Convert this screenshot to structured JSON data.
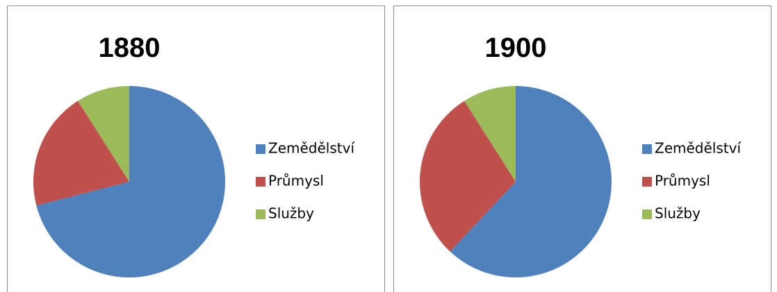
{
  "chart_data": [
    {
      "type": "pie",
      "title": "1880",
      "categories": [
        "Zemědělství",
        "Průmysl",
        "Služby"
      ],
      "values": [
        71,
        20,
        9
      ],
      "colors": [
        "#4f81bd",
        "#c0504d",
        "#9bbb59"
      ],
      "legend": "right"
    },
    {
      "type": "pie",
      "title": "1900",
      "categories": [
        "Zemědělství",
        "Průmysl",
        "Služby"
      ],
      "values": [
        62,
        29,
        9
      ],
      "colors": [
        "#4f81bd",
        "#c0504d",
        "#9bbb59"
      ],
      "legend": "right"
    }
  ]
}
